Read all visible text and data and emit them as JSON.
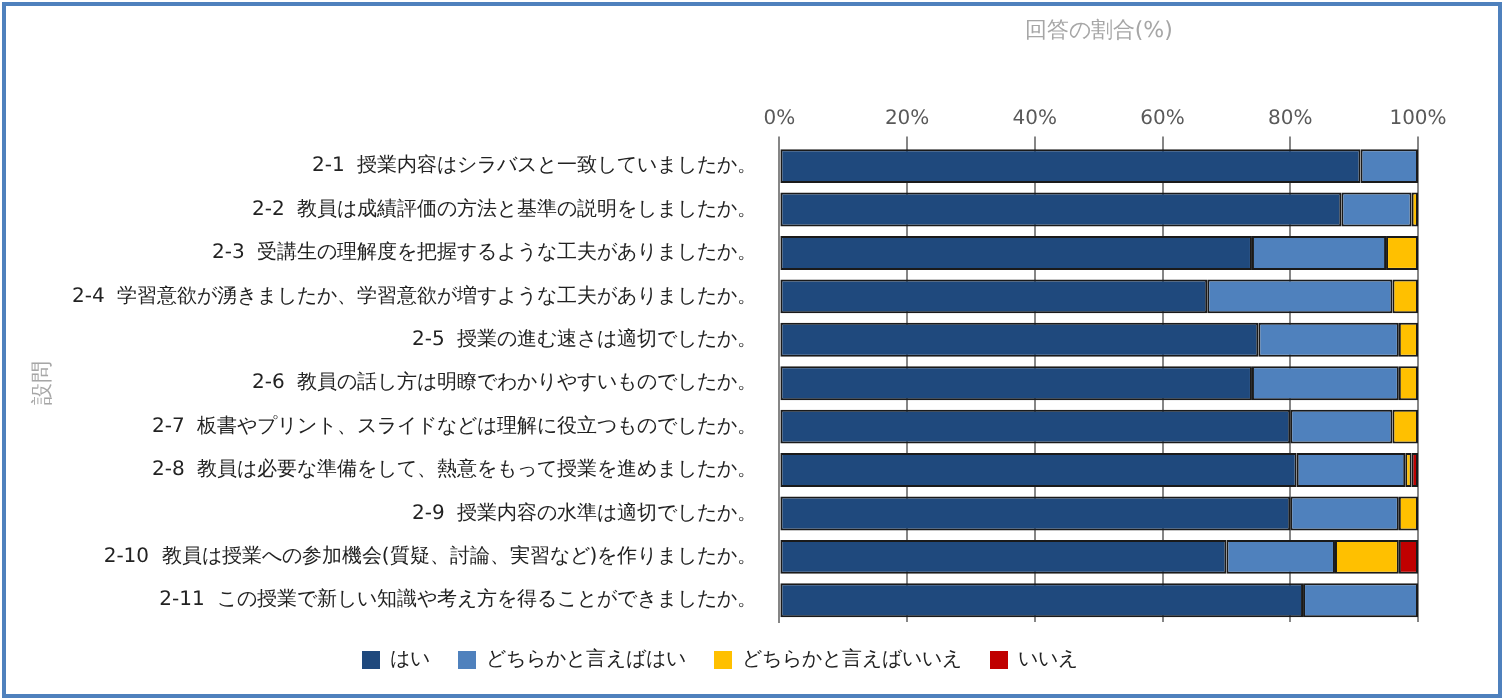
{
  "chart_data": {
    "type": "bar",
    "orientation": "horizontal",
    "stacked": true,
    "xlabel": "回答の割合(%)",
    "ylabel": "設問",
    "categories": [
      "2-1  授業内容はシラバスと一致していましたか。",
      "2-2  教員は成績評価の方法と基準の説明をしましたか。",
      "2-3  受講生の理解度を把握するような工夫がありましたか。",
      "2-4  学習意欲が湧きましたか、学習意欲が増すような工夫がありましたか。",
      "2-5  授業の進む速さは適切でしたか。",
      "2-6  教員の話し方は明瞭でわかりやすいものでしたか。",
      "2-7  板書やプリント、スライドなどは理解に役立つものでしたか。",
      "2-8  教員は必要な準備をして、熱意をもって授業を進めましたか。",
      "2-9  授業内容の水準は適切でしたか。",
      "2-10  教員は授業への参加機会(質疑、討論、実習など)を作りましたか。",
      "2-11  この授業で新しい知識や考え方を得ることができましたか。"
    ],
    "series": [
      {
        "name": "はい",
        "color": "#1f497d",
        "values": [
          91,
          88,
          74,
          67,
          75,
          74,
          80,
          81,
          80,
          70,
          82
        ]
      },
      {
        "name": "どちらかと言えばはい",
        "color": "#4f81bd",
        "values": [
          9,
          11,
          21,
          29,
          22,
          23,
          16,
          17,
          17,
          17,
          18
        ]
      },
      {
        "name": "どちらかと言えばいいえ",
        "color": "#ffc000",
        "values": [
          0,
          1,
          5,
          4,
          3,
          3,
          4,
          1,
          3,
          10,
          0
        ]
      },
      {
        "name": "いいえ",
        "color": "#c00000",
        "values": [
          0,
          0,
          0,
          0,
          0,
          0,
          0,
          1,
          0,
          3,
          0
        ]
      }
    ],
    "xlim": [
      0,
      100
    ],
    "xticks": [
      {
        "value": 0,
        "label": "0%"
      },
      {
        "value": 20,
        "label": "20%"
      },
      {
        "value": 40,
        "label": "40%"
      },
      {
        "value": 60,
        "label": "60%"
      },
      {
        "value": 80,
        "label": "80%"
      },
      {
        "value": 100,
        "label": "100%"
      }
    ],
    "grid": "x",
    "legend": "bottom"
  }
}
